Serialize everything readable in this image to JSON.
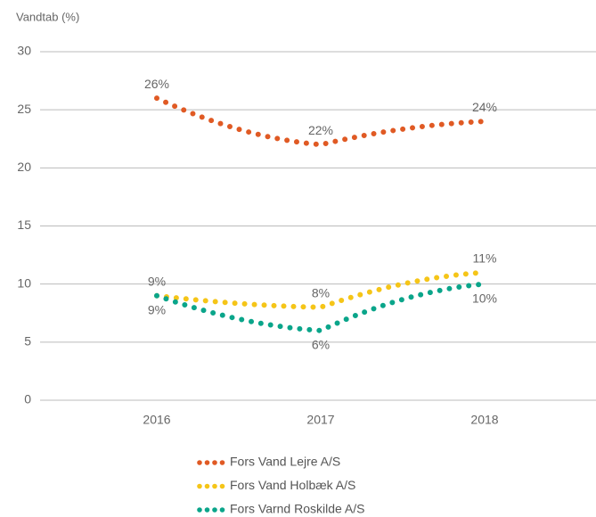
{
  "chart_data": {
    "type": "line",
    "y_label": "Vandtab (%)",
    "categories": [
      "2016",
      "2017",
      "2018"
    ],
    "ylim": [
      0,
      30
    ],
    "yticks": [
      0,
      5,
      10,
      15,
      20,
      25,
      30
    ],
    "grid": true,
    "legend": "bottom",
    "series": [
      {
        "name": "Fors Vand Lejre A/S",
        "color": "#e05a24",
        "values": [
          26,
          22,
          24
        ],
        "value_labels": [
          "26%",
          "22%",
          "24%"
        ],
        "label_position": "above"
      },
      {
        "name": "Fors Vand Holbæk A/S",
        "color": "#f5c518",
        "values": [
          9,
          8,
          11
        ],
        "value_labels": [
          "9%",
          "8%",
          "11%"
        ],
        "label_position": "above"
      },
      {
        "name": "Fors Varnd Roskilde A/S",
        "color": "#0aa58a",
        "values": [
          9,
          6,
          10
        ],
        "value_labels": [
          "9%",
          "6%",
          "10%"
        ],
        "label_position": "below"
      }
    ]
  }
}
